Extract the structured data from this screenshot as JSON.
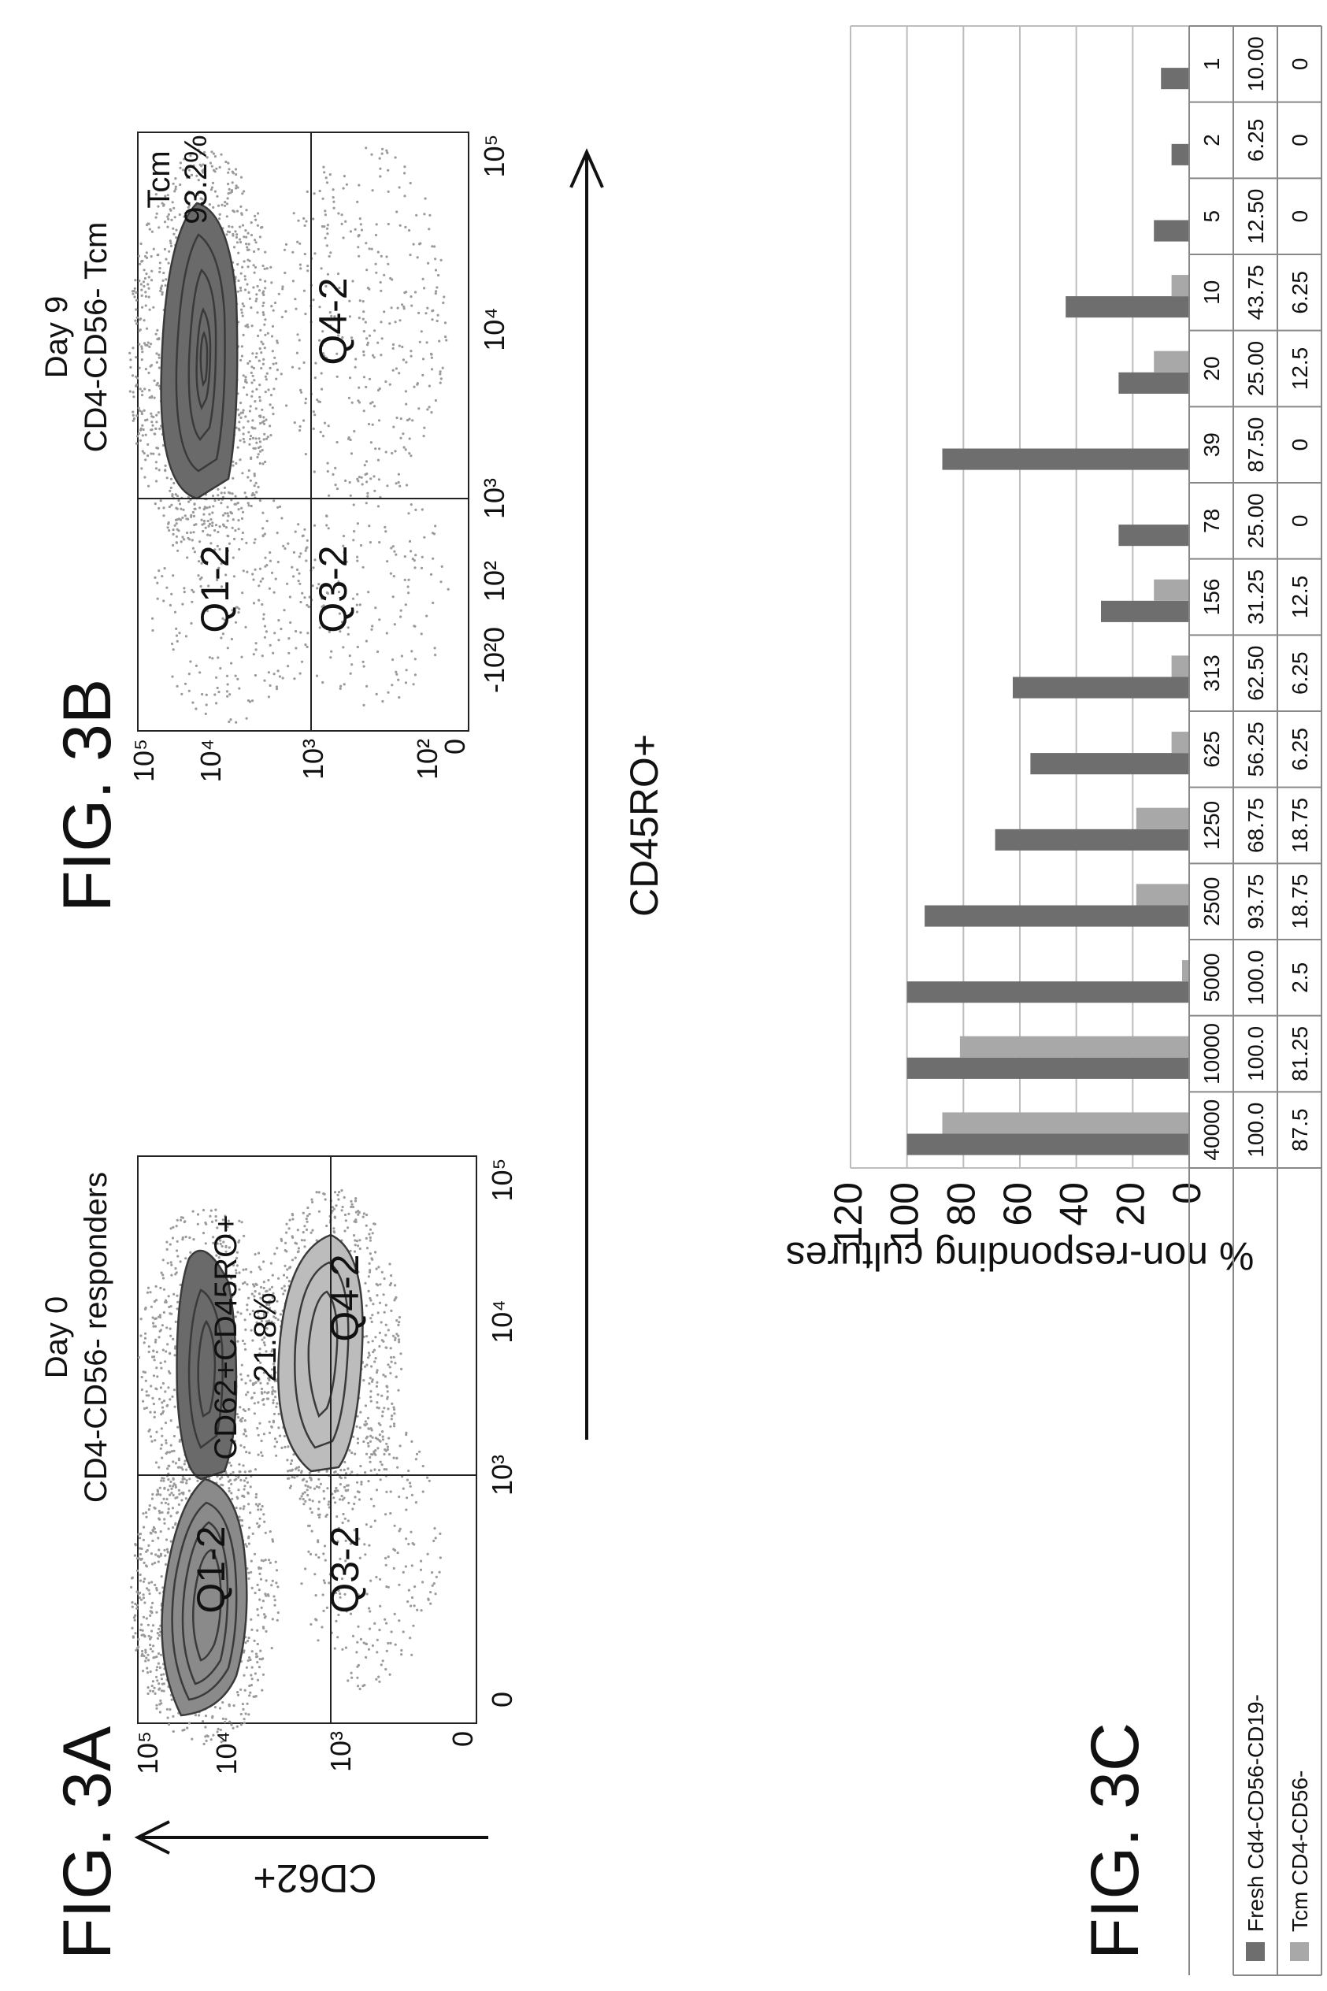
{
  "figure_labels": {
    "a": "FIG. 3A",
    "b": "FIG. 3B",
    "c": "FIG. 3C"
  },
  "panel_a": {
    "title_line1": "Day 0",
    "title_line2": "CD4-CD56- responders",
    "gate_label_line1": "CD62+CD45RO+",
    "gate_label_line2": "21.8%",
    "quadrants": [
      "Q1-2",
      "Q3-2",
      "Q4-2"
    ],
    "y_axis_label": "CD62+",
    "x_ticks": [
      "0",
      "10³",
      "10⁴",
      "10⁵"
    ],
    "y_ticks": [
      "0",
      "10³",
      "10⁴",
      "10⁵"
    ]
  },
  "panel_b": {
    "title_line1": "Day 9",
    "title_line2": "CD4-CD56- Tcm",
    "gate_label_line1": "Tcm",
    "gate_label_line2": "93.2%",
    "quadrants": [
      "Q1-2",
      "Q3-2",
      "Q4-2"
    ],
    "x_ticks": [
      "-10²0",
      "10²",
      "10³",
      "10⁴",
      "10⁵"
    ],
    "y_ticks": [
      "0",
      "10²",
      "10³",
      "10⁴",
      "10⁵"
    ]
  },
  "shared_x_axis_label": "CD45RO+",
  "colors": {
    "fresh": "#6e6e6e",
    "tcm": "#a8a8a8",
    "grid": "#bdbdbd",
    "dots_light": "#9a9a9a",
    "contour_dark": "#4a4a4a"
  },
  "chart_data": {
    "type": "bar",
    "ylabel": "% non-responding cultures",
    "ylim": [
      0,
      120
    ],
    "yticks": [
      0,
      20,
      40,
      60,
      80,
      100,
      120
    ],
    "grid": true,
    "categories": [
      "40000",
      "10000",
      "5000",
      "2500",
      "1250",
      "625",
      "313",
      "156",
      "78",
      "39",
      "20",
      "10",
      "5",
      "2",
      "1"
    ],
    "series": [
      {
        "name": "Fresh Cd4-CD56-CD19-",
        "values": [
          100,
          100,
          100,
          93.75,
          68.75,
          56.25,
          62.5,
          31.25,
          25,
          87.5,
          25,
          43.75,
          12.5,
          6.25,
          10
        ],
        "labels": [
          "100.0",
          "100.0",
          "100.0",
          "93.75",
          "68.75",
          "56.25",
          "62.50",
          "31.25",
          "25.00",
          "87.50",
          "25.00",
          "43.75",
          "12.50",
          "6.25",
          "10.00"
        ]
      },
      {
        "name": "Tcm CD4-CD56-",
        "values": [
          87.5,
          81.25,
          2.5,
          18.75,
          18.75,
          6.25,
          6.25,
          12.5,
          0,
          0,
          12.5,
          6.25,
          0,
          0,
          0
        ],
        "labels": [
          "87.5",
          "81.25",
          "2.5",
          "18.75",
          "18.75",
          "6.25",
          "6.25",
          "12.5",
          "0",
          "0",
          "12.5",
          "6.25",
          "0",
          "0",
          "0"
        ]
      }
    ],
    "legend": "table-below"
  }
}
